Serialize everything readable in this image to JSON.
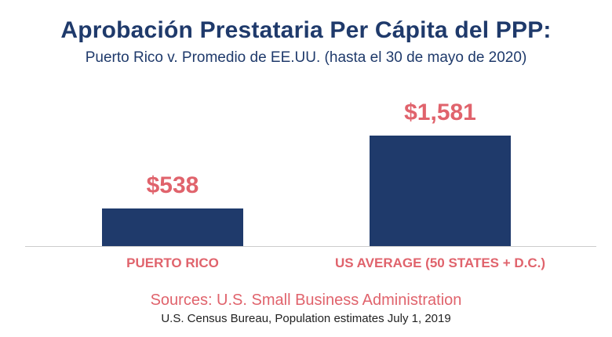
{
  "header": {
    "title": "Aprobación Prestataria Per Cápita del PPP:",
    "subtitle": "Puerto Rico v. Promedio de EE.UU. (hasta el 30 de mayo de 2020)"
  },
  "footer": {
    "sources": "Sources: U.S. Small Business Administration",
    "sources_detail": "U.S. Census Bureau, Population estimates July 1, 2019"
  },
  "colors": {
    "bar": "#1f3a6b",
    "label": "#e0636c",
    "axis": "#cccccc"
  },
  "chart_data": {
    "type": "bar",
    "title": "Aprobación Prestataria Per Cápita del PPP:",
    "subtitle": "Puerto Rico v. Promedio de EE.UU. (hasta el 30 de mayo de 2020)",
    "categories": [
      "PUERTO RICO",
      "US AVERAGE (50 STATES + D.C.)"
    ],
    "values": [
      538,
      1581
    ],
    "data_labels": [
      "$538",
      "$1,581"
    ],
    "xlabel": "",
    "ylabel": "",
    "ylim": [
      0,
      1581
    ],
    "grid": false,
    "legend": "none"
  }
}
